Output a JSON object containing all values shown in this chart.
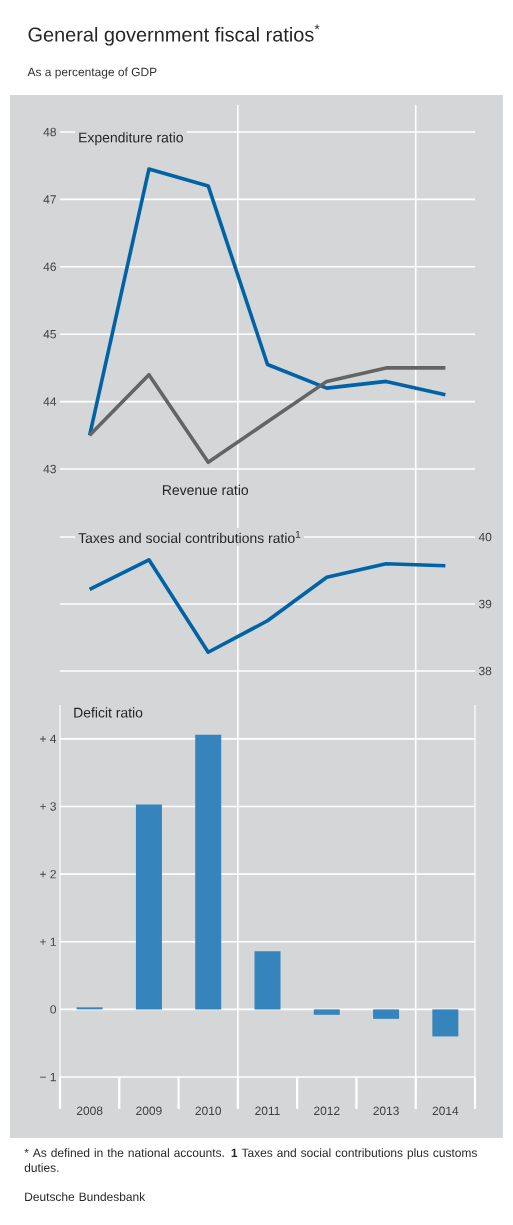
{
  "chart_data": [
    {
      "type": "line",
      "title": "General government fiscal ratios$^{*}$",
      "subtitle": "As a percentage of GDP",
      "categories": [
        "2008",
        "2009",
        "2010",
        "2011",
        "2012",
        "2013",
        "2014"
      ],
      "series": [
        {
          "name": "Expenditure ratio",
          "color": "#0063a6",
          "values": [
            43.5,
            47.45,
            47.2,
            44.55,
            44.2,
            44.3,
            44.1
          ]
        },
        {
          "name": "Revenue ratio",
          "color": "#646464",
          "values": [
            43.5,
            44.4,
            43.1,
            43.7,
            44.3,
            44.5,
            44.5
          ]
        }
      ],
      "ylim": [
        43,
        48
      ],
      "yticks": [
        43,
        44,
        45,
        46,
        47,
        48
      ],
      "grid": "y",
      "tick_labels": "y"
    },
    {
      "type": "line",
      "categories": [
        "2008",
        "2009",
        "2010",
        "2011",
        "2012",
        "2013",
        "2014"
      ],
      "series": [
        {
          "name": "Taxes and social contributions ratio$^{1}$",
          "color": "#0063a6",
          "values": [
            39.22,
            39.66,
            38.28,
            38.75,
            39.4,
            39.6,
            39.57
          ]
        }
      ],
      "ylim": [
        38,
        40
      ],
      "yticks": [
        38,
        39,
        40
      ],
      "grid": "y",
      "tick_labels": "y"
    },
    {
      "type": "bar",
      "categories": [
        "2008",
        "2009",
        "2010",
        "2011",
        "2012",
        "2013",
        "2014"
      ],
      "series": [
        {
          "name": "Deficit ratio",
          "color": "#3584bc",
          "values": [
            0.03,
            3.03,
            4.06,
            0.86,
            -0.08,
            -0.14,
            -0.4
          ]
        }
      ],
      "ylim": [
        -1,
        4.5
      ],
      "yticks": [
        {
          "value": -1,
          "label": "− 1"
        },
        0,
        {
          "value": 1,
          "label": "+ 1"
        },
        {
          "value": 2,
          "label": "+ 2"
        },
        {
          "value": 3,
          "label": "+ 3"
        },
        {
          "value": 4,
          "label": "+ 4"
        }
      ],
      "grid": "y",
      "annotations": [
        "* As defined in the national accounts. **1** Taxes and social contributions plus customs duties.",
        "Deutsche Bundesbank"
      ]
    }
  ]
}
